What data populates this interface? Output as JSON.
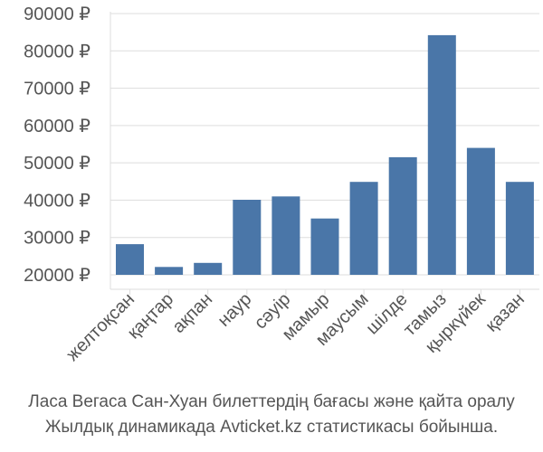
{
  "chart_data": {
    "type": "bar",
    "categories": [
      "желтоқсан",
      "қаңтар",
      "ақпан",
      "наур",
      "сәуір",
      "мамыр",
      "маусым",
      "шілде",
      "тамыз",
      "қыркүйек",
      "қазан"
    ],
    "values": [
      28200,
      22100,
      23200,
      40100,
      41000,
      35100,
      44900,
      51500,
      84200,
      54000,
      44900
    ],
    "ylim": [
      20000,
      90000
    ],
    "yticks": [
      20000,
      30000,
      40000,
      50000,
      60000,
      70000,
      80000,
      90000
    ],
    "ytick_labels": [
      "20000 ₽",
      "30000 ₽",
      "40000 ₽",
      "50000 ₽",
      "60000 ₽",
      "70000 ₽",
      "80000 ₽",
      "90000 ₽"
    ],
    "bar_color": "#4a76a8",
    "grid": true
  },
  "caption": {
    "line1": "Ласа Вегаса Сан-Хуан билеттердің бағасы және қайта оралу",
    "line2": "Жылдық динамикада Avticket.kz статистикасы бойынша."
  }
}
